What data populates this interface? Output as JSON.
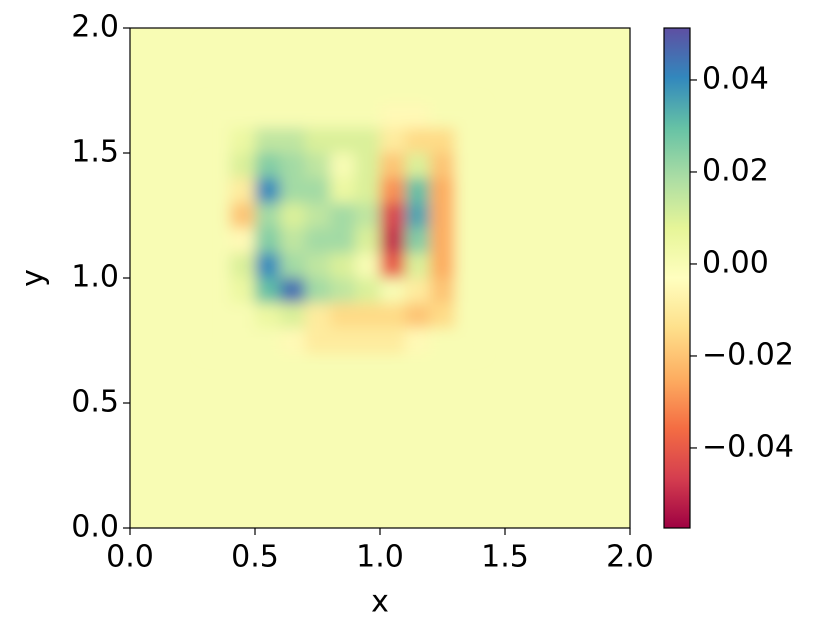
{
  "chart_data": {
    "type": "heatmap",
    "colormap": "Spectral",
    "xlabel": "x",
    "ylabel": "y",
    "xlim": [
      0,
      2
    ],
    "ylim": [
      0,
      2
    ],
    "xticks": [
      {
        "value": 0,
        "label": "0.0"
      },
      {
        "value": 0.5,
        "label": "0.5"
      },
      {
        "value": 1,
        "label": "1.0"
      },
      {
        "value": 1.5,
        "label": "1.5"
      },
      {
        "value": 2,
        "label": "2.0"
      }
    ],
    "yticks": [
      {
        "value": 0,
        "label": "0.0"
      },
      {
        "value": 0.5,
        "label": "0.5"
      },
      {
        "value": 1,
        "label": "1.0"
      },
      {
        "value": 1.5,
        "label": "1.5"
      },
      {
        "value": 2,
        "label": "2.0"
      }
    ],
    "clim": [
      -0.0574,
      0.0513
    ],
    "cticks": [
      {
        "value": -0.04,
        "label": "−0.04"
      },
      {
        "value": -0.02,
        "label": "−0.02"
      },
      {
        "value": 0,
        "label": "0.00"
      },
      {
        "value": 0.02,
        "label": "0.02"
      },
      {
        "value": 0.04,
        "label": "0.04"
      }
    ],
    "x": [
      0.35,
      0.45,
      0.55,
      0.65,
      0.75,
      0.85,
      0.95,
      1.05,
      1.15,
      1.25,
      1.35
    ],
    "y": [
      1.65,
      1.55,
      1.45,
      1.35,
      1.25,
      1.15,
      1.05,
      0.95,
      0.85,
      0.75
    ],
    "z": [
      [
        0,
        0,
        0,
        0,
        0,
        0,
        0,
        -0.005,
        -0.005,
        0,
        0
      ],
      [
        0,
        0.005,
        0.015,
        0.015,
        0.01,
        0.01,
        0.01,
        -0.01,
        -0.015,
        -0.015,
        0
      ],
      [
        0,
        0.01,
        0.025,
        0.02,
        0.015,
        0,
        0.01,
        -0.02,
        0.01,
        -0.02,
        0
      ],
      [
        0,
        -0.01,
        0.04,
        0.02,
        0.02,
        0.005,
        0.01,
        -0.03,
        0.03,
        -0.025,
        0
      ],
      [
        0,
        -0.02,
        0.02,
        0.01,
        0.015,
        0.02,
        0.015,
        -0.045,
        0.035,
        -0.025,
        0
      ],
      [
        0,
        -0.005,
        0.025,
        0.015,
        0.02,
        0.02,
        0.01,
        -0.05,
        0.025,
        -0.025,
        0
      ],
      [
        0,
        0.01,
        0.04,
        0.02,
        0.015,
        0.01,
        0,
        -0.04,
        0.01,
        -0.025,
        0
      ],
      [
        0,
        0.005,
        0.03,
        0.045,
        0.02,
        0.015,
        0.01,
        0,
        -0.01,
        -0.02,
        0
      ],
      [
        0,
        0,
        0.005,
        0.01,
        -0.01,
        -0.015,
        -0.015,
        -0.015,
        -0.02,
        -0.015,
        0
      ],
      [
        0,
        0,
        0,
        -0.005,
        -0.01,
        -0.01,
        -0.01,
        -0.01,
        -0.005,
        0,
        0
      ]
    ]
  }
}
